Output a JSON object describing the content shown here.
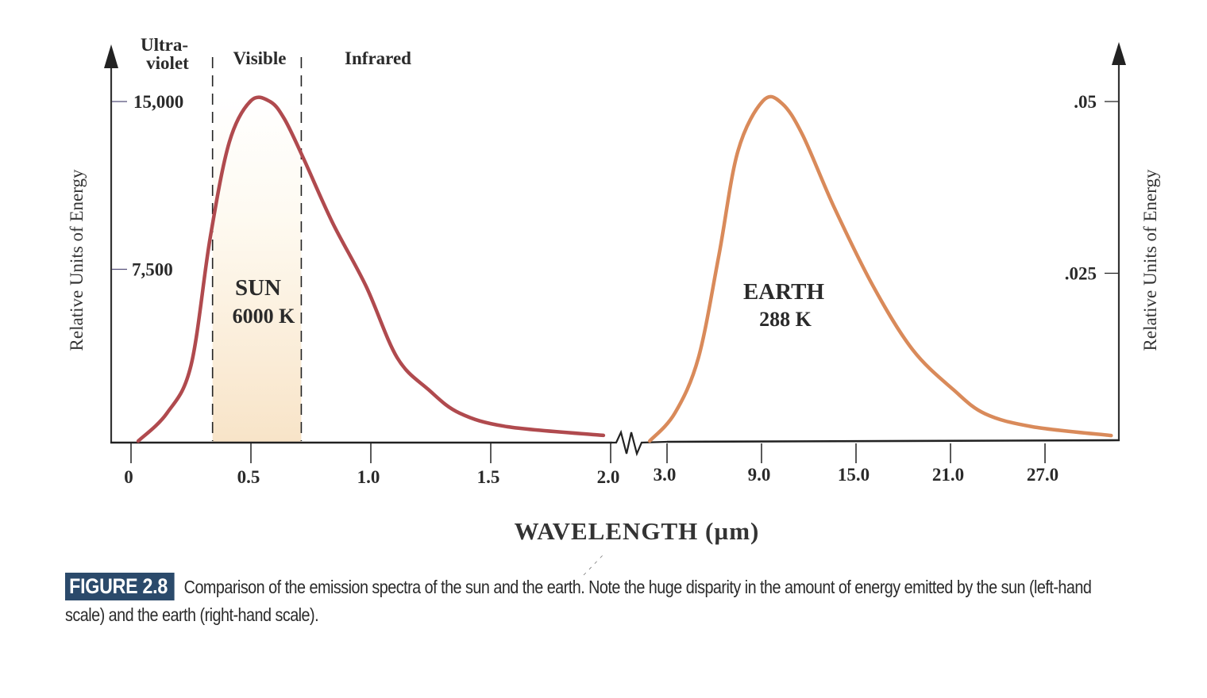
{
  "figure": {
    "badge": "FIGURE 2.8",
    "caption_line1": "Comparison of the emission spectra of the sun and the earth. Note the huge disparity in the amount of energy emitted by the sun (left-hand",
    "caption_line2": "scale) and the earth (right-hand scale)."
  },
  "colors": {
    "sun_curve": "#b04a4e",
    "earth_curve": "#d98a5a",
    "visible_band": "#f8e6cc",
    "caption_badge": "#2b4a6b",
    "axis": "#222222"
  },
  "chart_data": {
    "type": "line",
    "title": "",
    "xlabel": "WAVELENGTH (µm)",
    "ylabel_left": "Relative Units of Energy",
    "ylabel_right": "Relative Units of Energy",
    "grid": false,
    "x_axis_broken": true,
    "x_segments": [
      {
        "name": "sun-segment",
        "range": [
          0,
          2.0
        ],
        "ticks": [
          0,
          0.5,
          1.0,
          1.5,
          2.0
        ],
        "tick_labels": [
          "0",
          "0.5",
          "1.0",
          "1.5",
          "2.0"
        ]
      },
      {
        "name": "earth-segment",
        "range": [
          3.0,
          30.0
        ],
        "ticks": [
          3.0,
          9.0,
          15.0,
          21.0,
          27.0
        ],
        "tick_labels": [
          "3.0",
          "9.0",
          "15.0",
          "21.0",
          "27.0"
        ]
      }
    ],
    "y_left": {
      "range": [
        0,
        15000
      ],
      "ticks": [
        7500,
        15000
      ],
      "tick_labels": [
        "7,500",
        "15,000"
      ]
    },
    "y_right": {
      "range": [
        0,
        0.05
      ],
      "ticks": [
        0.025,
        0.05
      ],
      "tick_labels": [
        ".025",
        ".05"
      ]
    },
    "regions": [
      {
        "label": "Ultra-\nviolet",
        "line1": "Ultra-",
        "line2": "violet",
        "range": [
          0,
          0.34
        ]
      },
      {
        "label": "Visible",
        "range": [
          0.34,
          0.71
        ]
      },
      {
        "label": "Infrared",
        "range": [
          0.71,
          2.0
        ]
      }
    ],
    "series": [
      {
        "name": "SUN",
        "annotation_line1": "SUN",
        "annotation_line2": "6000 K",
        "axis": "left",
        "x": [
          0.03,
          0.15,
          0.25,
          0.33,
          0.41,
          0.5,
          0.58,
          0.64,
          0.72,
          0.84,
          0.98,
          1.11,
          1.24,
          1.37,
          1.57,
          1.97
        ],
        "y": [
          0,
          1230,
          3330,
          8960,
          13180,
          15000,
          14960,
          14190,
          12440,
          9630,
          6820,
          3670,
          2270,
          1230,
          630,
          250
        ]
      },
      {
        "name": "EARTH",
        "annotation_line1": "EARTH",
        "annotation_line2": "288 K",
        "axis": "right",
        "x": [
          1.9,
          3.5,
          5.0,
          6.3,
          7.5,
          9.1,
          10.3,
          11.6,
          13.6,
          16.1,
          18.6,
          21.2,
          23.2,
          26.2,
          31.2
        ],
        "y": [
          0,
          0.0041,
          0.0123,
          0.0274,
          0.0426,
          0.05,
          0.0496,
          0.045,
          0.0344,
          0.0227,
          0.0134,
          0.0075,
          0.004,
          0.0021,
          0.0008
        ]
      }
    ]
  }
}
